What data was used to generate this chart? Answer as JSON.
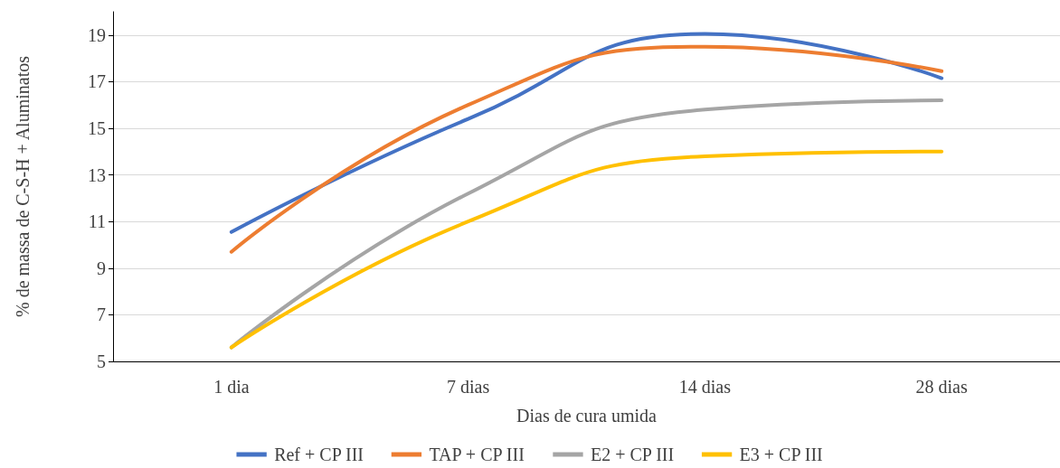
{
  "chart_data": {
    "type": "line",
    "xlabel": "Dias de cura umida",
    "ylabel": "% de massa de C-S-H + Aluminatos",
    "categories": [
      "1 dia",
      "7 dias",
      "14 dias",
      "28 dias"
    ],
    "series": [
      {
        "name": "Ref + CP III",
        "color": "#4472c4",
        "values": [
          10.55,
          15.4,
          19.05,
          17.15
        ]
      },
      {
        "name": "TAP + CP III",
        "color": "#ed7d31",
        "values": [
          9.7,
          16.0,
          18.5,
          17.45
        ]
      },
      {
        "name": "E2 + CP III",
        "color": "#a5a5a5",
        "values": [
          5.6,
          12.2,
          15.8,
          16.2
        ]
      },
      {
        "name": "E3 + CP III",
        "color": "#ffc000",
        "values": [
          5.6,
          11.0,
          13.8,
          14.0
        ]
      }
    ],
    "ylim": [
      5,
      20
    ],
    "yticks": [
      5,
      7,
      9,
      11,
      13,
      15,
      17,
      19
    ],
    "grid": "y",
    "legend": "bottom",
    "marker": "none",
    "line_style": "solid"
  }
}
